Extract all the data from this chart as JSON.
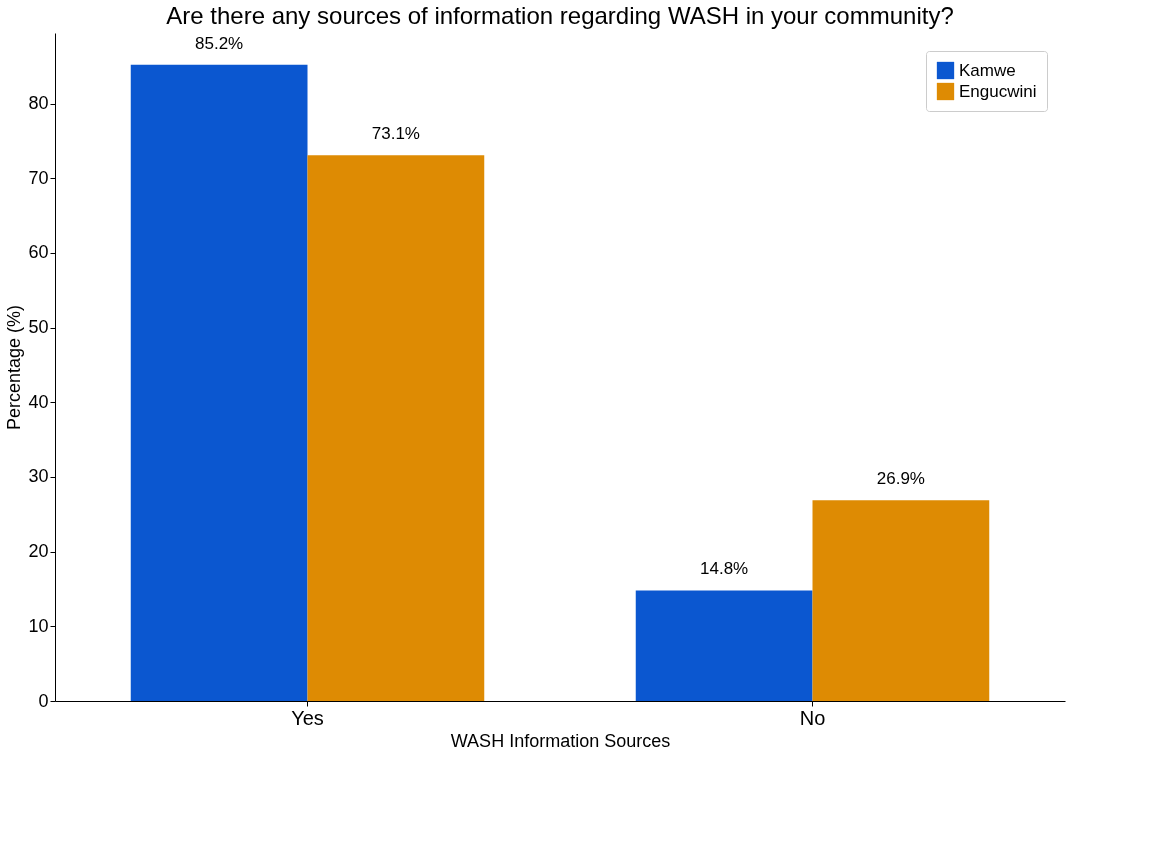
{
  "chart_data": {
    "type": "bar",
    "title": "Are there any sources of information regarding WASH in your community?",
    "xlabel": "WASH Information Sources",
    "ylabel": "Percentage (%)",
    "categories": [
      "Yes",
      "No"
    ],
    "series": [
      {
        "name": "Kamwe",
        "color": "#0b57d0",
        "values": [
          85.2,
          14.8
        ],
        "value_labels": [
          "85.2%",
          "14.8%"
        ]
      },
      {
        "name": "Engucwini",
        "color": "#de8b03",
        "values": [
          73.1,
          26.9
        ],
        "value_labels": [
          "73.1%",
          "26.9%"
        ]
      }
    ],
    "ylim": [
      0,
      89.46
    ],
    "yticks": [
      0,
      10,
      20,
      30,
      40,
      50,
      60,
      70,
      80
    ],
    "grid": false,
    "legend": "top right"
  }
}
